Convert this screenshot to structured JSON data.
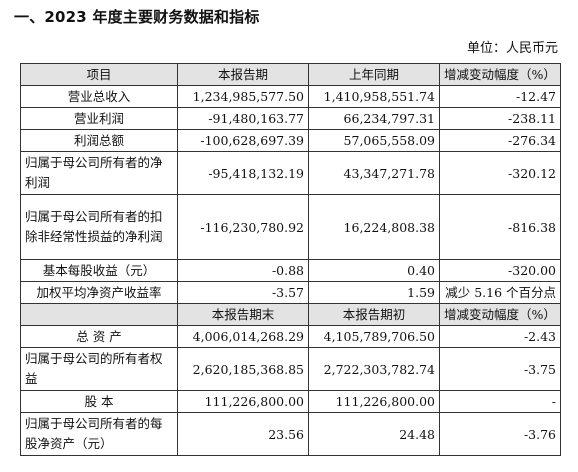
{
  "section_title": "一、2023 年度主要财务数据和指标",
  "unit_label": "单位：人民币元",
  "header1": {
    "item": "项目",
    "current": "本报告期",
    "prior": "上年同期",
    "change": "增减变动幅度（%）"
  },
  "rows1": [
    {
      "label": "营业总收入",
      "current": "1,234,985,577.50",
      "prior": "1,410,958,551.74",
      "change": "-12.47"
    },
    {
      "label": "营业利润",
      "current": "-91,480,163.77",
      "prior": "66,234,797.31",
      "change": "-238.11"
    },
    {
      "label": "利润总额",
      "current": "-100,628,697.39",
      "prior": "57,065,558.09",
      "change": "-276.34"
    },
    {
      "label": "归属于母公司所有者的净利润",
      "current": "-95,418,132.19",
      "prior": "43,347,271.78",
      "change": "-320.12"
    },
    {
      "label": "归属于母公司所有者的扣除非经常性损益的净利润",
      "current": "-116,230,780.92",
      "prior": "16,224,808.38",
      "change": "-816.38"
    },
    {
      "label": "基本每股收益（元）",
      "current": "-0.88",
      "prior": "0.40",
      "change": "-320.00"
    },
    {
      "label": "加权平均净资产收益率",
      "current": "-3.57",
      "prior": "1.59",
      "change": "减少 5.16 个百分点"
    }
  ],
  "header2": {
    "current": "本报告期末",
    "prior": "本报告期初",
    "change": "增减变动幅度（%）"
  },
  "rows2": [
    {
      "label": "总 资 产",
      "current": "4,006,014,268.29",
      "prior": "4,105,789,706.50",
      "change": "-2.43"
    },
    {
      "label": "归属于母公司的所有者权益",
      "current": "2,620,185,368.85",
      "prior": "2,722,303,782.74",
      "change": "-3.75"
    },
    {
      "label": "股 本",
      "current": "111,226,800.00",
      "prior": "111,226,800.00",
      "change": "-"
    },
    {
      "label": "归属于母公司所有者的每股净资产（元）",
      "current": "23.56",
      "prior": "24.48",
      "change": "-3.76"
    }
  ]
}
